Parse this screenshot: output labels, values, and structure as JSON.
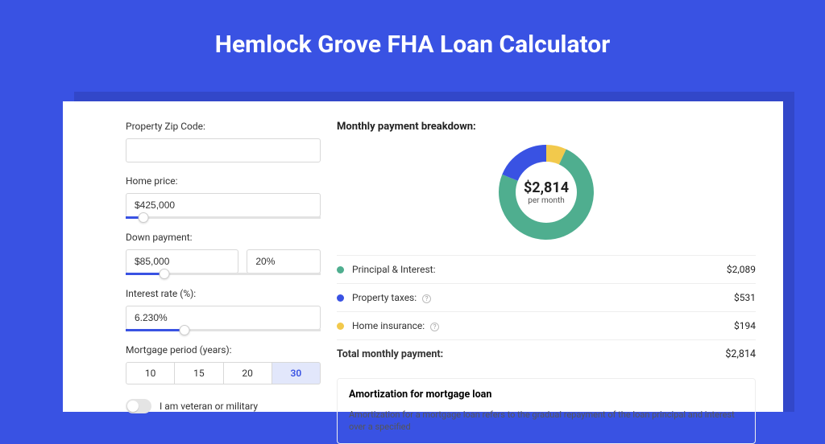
{
  "title": "Hemlock Grove FHA Loan Calculator",
  "colors": {
    "page_bg": "#3952e3",
    "shadow_panel": "#3247c9",
    "panel_bg": "#ffffff",
    "slider_fill": "#3952e3",
    "active_period_bg": "#e2e7fb",
    "active_period_text": "#3952e3",
    "border": "#d8d8d8",
    "divider": "#eeeeee"
  },
  "form": {
    "zip": {
      "label": "Property Zip Code:",
      "value": ""
    },
    "home_price": {
      "label": "Home price:",
      "value": "$425,000",
      "slider_pct": 9
    },
    "down_payment": {
      "label": "Down payment:",
      "value": "$85,000",
      "pct_value": "20%",
      "slider_pct": 20
    },
    "interest_rate": {
      "label": "Interest rate (%):",
      "value": "6.230%",
      "slider_pct": 30
    },
    "period": {
      "label": "Mortgage period (years):",
      "options": [
        "10",
        "15",
        "20",
        "30"
      ],
      "active_index": 3
    },
    "veteran": {
      "label": "I am veteran or military",
      "on": false
    }
  },
  "breakdown": {
    "title": "Monthly payment breakdown:",
    "center_value": "$2,814",
    "center_sub": "per month",
    "donut": {
      "principal_pct": 74.2,
      "taxes_pct": 18.9,
      "insurance_pct": 6.9,
      "colors": {
        "principal": "#4fae8f",
        "taxes": "#3952e3",
        "insurance": "#f2c94c"
      }
    },
    "items": [
      {
        "label": "Principal & Interest:",
        "value": "$2,089",
        "color": "#4fae8f",
        "info": false
      },
      {
        "label": "Property taxes:",
        "value": "$531",
        "color": "#3952e3",
        "info": true
      },
      {
        "label": "Home insurance:",
        "value": "$194",
        "color": "#f2c94c",
        "info": true
      }
    ],
    "total": {
      "label": "Total monthly payment:",
      "value": "$2,814"
    }
  },
  "amortization": {
    "title": "Amortization for mortgage loan",
    "body": "Amortization for a mortgage loan refers to the gradual repayment of the loan principal and interest over a specified"
  }
}
